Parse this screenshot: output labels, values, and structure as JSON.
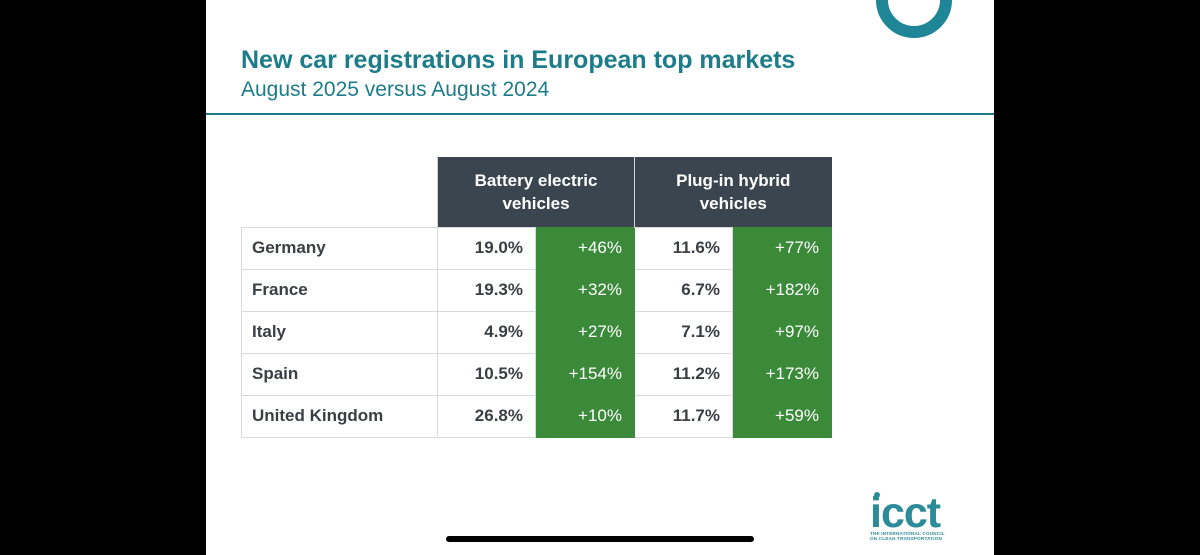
{
  "title": "New car registrations in European top markets",
  "subtitle": "August 2025 versus August 2024",
  "chart_data": {
    "type": "table",
    "columns": [
      "Battery electric vehicles",
      "Plug-in hybrid vehicles"
    ],
    "rows": [
      {
        "country": "Germany",
        "bev_share": "19.0%",
        "bev_change": "+46%",
        "phev_share": "11.6%",
        "phev_change": "+77%"
      },
      {
        "country": "France",
        "bev_share": "19.3%",
        "bev_change": "+32%",
        "phev_share": "6.7%",
        "phev_change": "+182%"
      },
      {
        "country": "Italy",
        "bev_share": "4.9%",
        "bev_change": "+27%",
        "phev_share": "7.1%",
        "phev_change": "+97%"
      },
      {
        "country": "Spain",
        "bev_share": "10.5%",
        "bev_change": "+154%",
        "phev_share": "11.2%",
        "phev_change": "+173%"
      },
      {
        "country": "United Kingdom",
        "bev_share": "26.8%",
        "bev_change": "+10%",
        "phev_share": "11.7%",
        "phev_change": "+59%"
      }
    ]
  },
  "colors": {
    "accent": "#1d7c8a",
    "header_bg": "#3a4550",
    "change_bg": "#3b8a3a"
  },
  "logo": {
    "word": "icct",
    "line1": "THE INTERNATIONAL COUNCIL",
    "line2": "ON CLEAN TRANSPORTATION"
  }
}
